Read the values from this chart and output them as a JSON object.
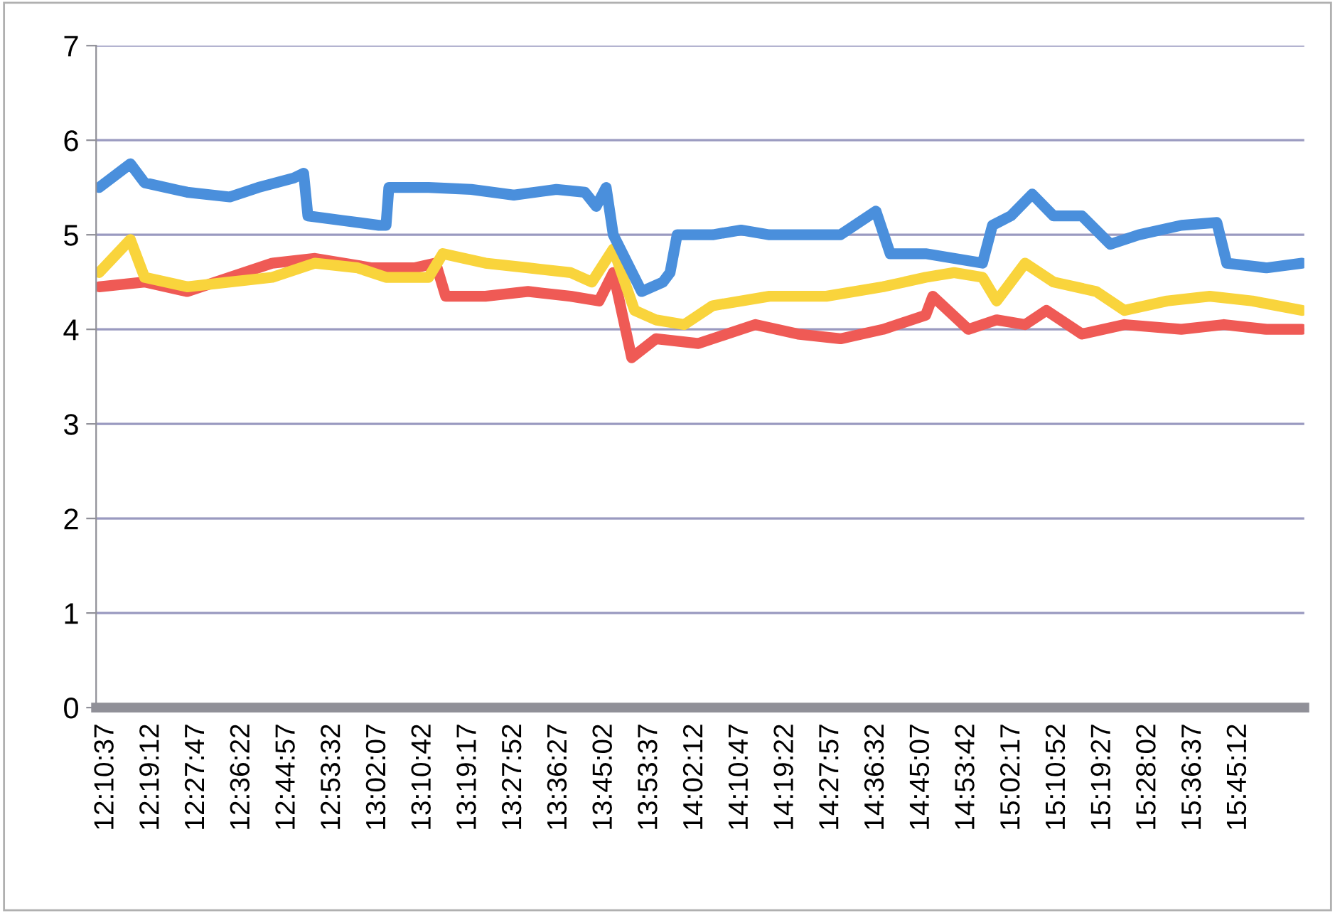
{
  "chart_data": {
    "type": "line",
    "ylim": [
      0,
      7
    ],
    "yticks": [
      0,
      1,
      2,
      3,
      4,
      5,
      6,
      7
    ],
    "xlim": [
      12.145,
      15.96
    ],
    "xticks": [
      {
        "value": 12.1769,
        "label": "12:10:37"
      },
      {
        "value": 12.32,
        "label": "12:19:12"
      },
      {
        "value": 12.4631,
        "label": "12:27:47"
      },
      {
        "value": 12.6061,
        "label": "12:36:22"
      },
      {
        "value": 12.7492,
        "label": "12:44:57"
      },
      {
        "value": 12.8922,
        "label": "12:53:32"
      },
      {
        "value": 13.0353,
        "label": "13:02:07"
      },
      {
        "value": 13.1783,
        "label": "13:10:42"
      },
      {
        "value": 13.3214,
        "label": "13:19:17"
      },
      {
        "value": 13.4644,
        "label": "13:27:52"
      },
      {
        "value": 13.6075,
        "label": "13:36:27"
      },
      {
        "value": 13.7506,
        "label": "13:45:02"
      },
      {
        "value": 13.8936,
        "label": "13:53:37"
      },
      {
        "value": 14.0367,
        "label": "14:02:12"
      },
      {
        "value": 14.1797,
        "label": "14:10:47"
      },
      {
        "value": 14.3228,
        "label": "14:19:22"
      },
      {
        "value": 14.4658,
        "label": "14:27:57"
      },
      {
        "value": 14.6089,
        "label": "14:36:32"
      },
      {
        "value": 14.7519,
        "label": "14:45:07"
      },
      {
        "value": 14.895,
        "label": "14:53:42"
      },
      {
        "value": 15.0381,
        "label": "15:02:17"
      },
      {
        "value": 15.1811,
        "label": "15:10:52"
      },
      {
        "value": 15.3242,
        "label": "15:19:27"
      },
      {
        "value": 15.4672,
        "label": "15:28:02"
      },
      {
        "value": 15.6103,
        "label": "15:36:37"
      },
      {
        "value": 15.7533,
        "label": "15:45:12"
      }
    ],
    "grid": "y",
    "marker": "none",
    "line_style": "solid",
    "series": [
      {
        "color": "#ef5a55",
        "x": [
          12.1545,
          12.298,
          12.4326,
          12.5671,
          12.7016,
          12.8362,
          13.0155,
          13.1501,
          13.2173,
          13.2487,
          13.3743,
          13.5088,
          13.6434,
          13.7331,
          13.7779,
          13.8362,
          13.9124,
          14.047,
          14.1367,
          14.2264,
          14.3609,
          14.4954,
          14.63,
          14.7645,
          14.7869,
          14.899,
          14.9887,
          15.0784,
          15.1457,
          15.2578,
          15.3923,
          15.5717,
          15.7062,
          15.8408,
          15.9529
        ],
        "values": [
          4.45,
          4.5,
          4.4,
          4.55,
          4.7,
          4.75,
          4.65,
          4.65,
          4.7,
          4.35,
          4.35,
          4.4,
          4.35,
          4.3,
          4.6,
          3.7,
          3.9,
          3.85,
          3.95,
          4.05,
          3.95,
          3.9,
          4.0,
          4.15,
          4.35,
          4.0,
          4.1,
          4.05,
          4.2,
          3.95,
          4.05,
          4.0,
          4.05,
          4.0,
          4.0
        ]
      },
      {
        "color": "#f9d43c",
        "x": [
          12.1545,
          12.2532,
          12.298,
          12.4326,
          12.5671,
          12.7016,
          12.8362,
          12.9707,
          13.0604,
          13.1949,
          13.2398,
          13.3743,
          13.5088,
          13.6434,
          13.7106,
          13.7779,
          13.8452,
          13.9124,
          14.0021,
          14.0918,
          14.2712,
          14.4506,
          14.63,
          14.7645,
          14.8542,
          14.9439,
          14.9887,
          15.0784,
          15.1681,
          15.3026,
          15.3923,
          15.5269,
          15.6614,
          15.7959,
          15.9529
        ],
        "values": [
          4.6,
          4.95,
          4.55,
          4.45,
          4.5,
          4.55,
          4.7,
          4.65,
          4.55,
          4.55,
          4.8,
          4.7,
          4.65,
          4.6,
          4.5,
          4.85,
          4.2,
          4.1,
          4.05,
          4.25,
          4.35,
          4.35,
          4.45,
          4.55,
          4.6,
          4.55,
          4.3,
          4.7,
          4.5,
          4.4,
          4.2,
          4.3,
          4.35,
          4.3,
          4.2
        ]
      },
      {
        "color": "#4a8fdc",
        "x": [
          12.1545,
          12.2532,
          12.298,
          12.4326,
          12.5671,
          12.6568,
          12.7689,
          12.8003,
          12.8137,
          12.9259,
          13.038,
          13.0604,
          13.0694,
          13.1949,
          13.3295,
          13.464,
          13.5985,
          13.6882,
          13.7241,
          13.7555,
          13.7779,
          13.8228,
          13.8676,
          13.9349,
          13.9573,
          13.9797,
          14.0918,
          14.1815,
          14.2712,
          14.3609,
          14.4954,
          14.6075,
          14.6524,
          14.7645,
          14.9439,
          14.9753,
          15.0336,
          15.1008,
          15.1681,
          15.2578,
          15.3475,
          15.4372,
          15.5717,
          15.6838,
          15.7152,
          15.8408,
          15.9529
        ],
        "values": [
          5.5,
          5.75,
          5.55,
          5.45,
          5.4,
          5.5,
          5.6,
          5.65,
          5.2,
          5.15,
          5.1,
          5.1,
          5.5,
          5.5,
          5.48,
          5.42,
          5.48,
          5.45,
          5.3,
          5.5,
          5.0,
          4.7,
          4.4,
          4.5,
          4.6,
          5.0,
          5.0,
          5.05,
          5.0,
          5.0,
          5.0,
          5.25,
          4.8,
          4.8,
          4.7,
          5.1,
          5.2,
          5.43,
          5.2,
          5.2,
          4.9,
          5.0,
          5.1,
          5.13,
          4.7,
          4.65,
          4.7
        ]
      }
    ]
  }
}
